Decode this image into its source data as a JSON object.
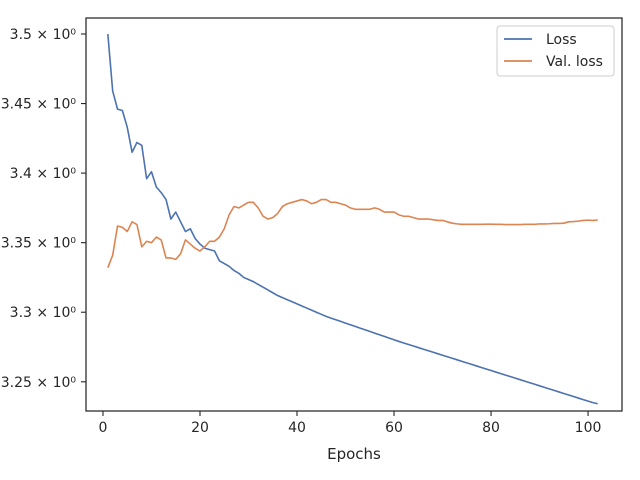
{
  "chart_data": {
    "type": "line",
    "title": "",
    "xlabel": "Epochs",
    "ylabel": "",
    "xlim": [
      -3.5,
      107
    ],
    "ylim": [
      3.229,
      3.5115
    ],
    "xticks": [
      0,
      20,
      40,
      60,
      80,
      100
    ],
    "xtick_labels": [
      "0",
      "20",
      "40",
      "60",
      "80",
      "100"
    ],
    "yticks": [
      3.25,
      3.3,
      3.35,
      3.4,
      3.45,
      3.5
    ],
    "ytick_labels": [
      "3.25 × 10⁰",
      "3.3 × 10⁰",
      "3.35 × 10⁰",
      "3.4 × 10⁰",
      "3.45 × 10⁰",
      "3.5 × 10⁰"
    ],
    "grid": false,
    "legend_position": "top-right",
    "x": [
      1,
      2,
      3,
      4,
      5,
      6,
      7,
      8,
      9,
      10,
      11,
      12,
      13,
      14,
      15,
      16,
      17,
      18,
      19,
      20,
      21,
      22,
      23,
      24,
      25,
      26,
      27,
      28,
      29,
      30,
      31,
      32,
      33,
      34,
      35,
      36,
      37,
      38,
      39,
      40,
      41,
      42,
      43,
      44,
      45,
      46,
      47,
      48,
      49,
      50,
      51,
      52,
      53,
      54,
      55,
      56,
      57,
      58,
      59,
      60,
      61,
      62,
      63,
      64,
      65,
      66,
      67,
      68,
      69,
      70,
      71,
      72,
      73,
      74,
      75,
      76,
      77,
      78,
      79,
      80,
      81,
      82,
      83,
      84,
      85,
      86,
      87,
      88,
      89,
      90,
      91,
      92,
      93,
      94,
      95,
      96,
      97,
      98,
      99,
      100,
      101,
      102
    ],
    "series": [
      {
        "name": "Loss",
        "color": "#4c72b0",
        "values": [
          3.5,
          3.459,
          3.446,
          3.445,
          3.433,
          3.415,
          3.422,
          3.42,
          3.396,
          3.401,
          3.39,
          3.386,
          3.381,
          3.367,
          3.372,
          3.365,
          3.358,
          3.36,
          3.353,
          3.349,
          3.346,
          3.345,
          3.344,
          3.337,
          3.335,
          3.333,
          3.33,
          3.328,
          3.325,
          3.3235,
          3.322,
          3.32,
          3.318,
          3.316,
          3.314,
          3.312,
          3.3105,
          3.309,
          3.3075,
          3.306,
          3.3045,
          3.303,
          3.3015,
          3.3,
          3.2985,
          3.297,
          3.2958,
          3.2946,
          3.2934,
          3.2922,
          3.291,
          3.2898,
          3.2886,
          3.2874,
          3.2862,
          3.285,
          3.2838,
          3.2826,
          3.2814,
          3.2802,
          3.279,
          3.2779,
          3.2768,
          3.2757,
          3.2746,
          3.2735,
          3.2724,
          3.2713,
          3.2702,
          3.2691,
          3.268,
          3.2669,
          3.2658,
          3.2647,
          3.2636,
          3.2625,
          3.2614,
          3.2603,
          3.2592,
          3.2581,
          3.257,
          3.2559,
          3.2548,
          3.2537,
          3.2526,
          3.2515,
          3.2504,
          3.2493,
          3.2482,
          3.2471,
          3.246,
          3.2449,
          3.2438,
          3.2427,
          3.2416,
          3.2405,
          3.2394,
          3.2383,
          3.2372,
          3.2361,
          3.235,
          3.2342
        ]
      },
      {
        "name": "Val. loss",
        "color": "#dd8452",
        "values": [
          3.332,
          3.341,
          3.362,
          3.361,
          3.358,
          3.365,
          3.363,
          3.347,
          3.351,
          3.35,
          3.354,
          3.352,
          3.339,
          3.339,
          3.338,
          3.342,
          3.352,
          3.349,
          3.346,
          3.344,
          3.347,
          3.351,
          3.351,
          3.354,
          3.36,
          3.37,
          3.376,
          3.375,
          3.377,
          3.379,
          3.379,
          3.375,
          3.369,
          3.367,
          3.368,
          3.371,
          3.376,
          3.378,
          3.379,
          3.38,
          3.381,
          3.38,
          3.378,
          3.379,
          3.381,
          3.381,
          3.379,
          3.379,
          3.378,
          3.377,
          3.375,
          3.374,
          3.374,
          3.374,
          3.374,
          3.375,
          3.374,
          3.372,
          3.372,
          3.372,
          3.37,
          3.369,
          3.369,
          3.368,
          3.367,
          3.367,
          3.367,
          3.3665,
          3.366,
          3.366,
          3.365,
          3.364,
          3.3635,
          3.3632,
          3.3632,
          3.3632,
          3.3632,
          3.3632,
          3.3633,
          3.3633,
          3.3632,
          3.3632,
          3.363,
          3.363,
          3.363,
          3.363,
          3.3632,
          3.3632,
          3.3632,
          3.3635,
          3.3635,
          3.3636,
          3.3638,
          3.3638,
          3.364,
          3.365,
          3.3652,
          3.3655,
          3.366,
          3.3662,
          3.366,
          3.3663
        ]
      }
    ]
  }
}
